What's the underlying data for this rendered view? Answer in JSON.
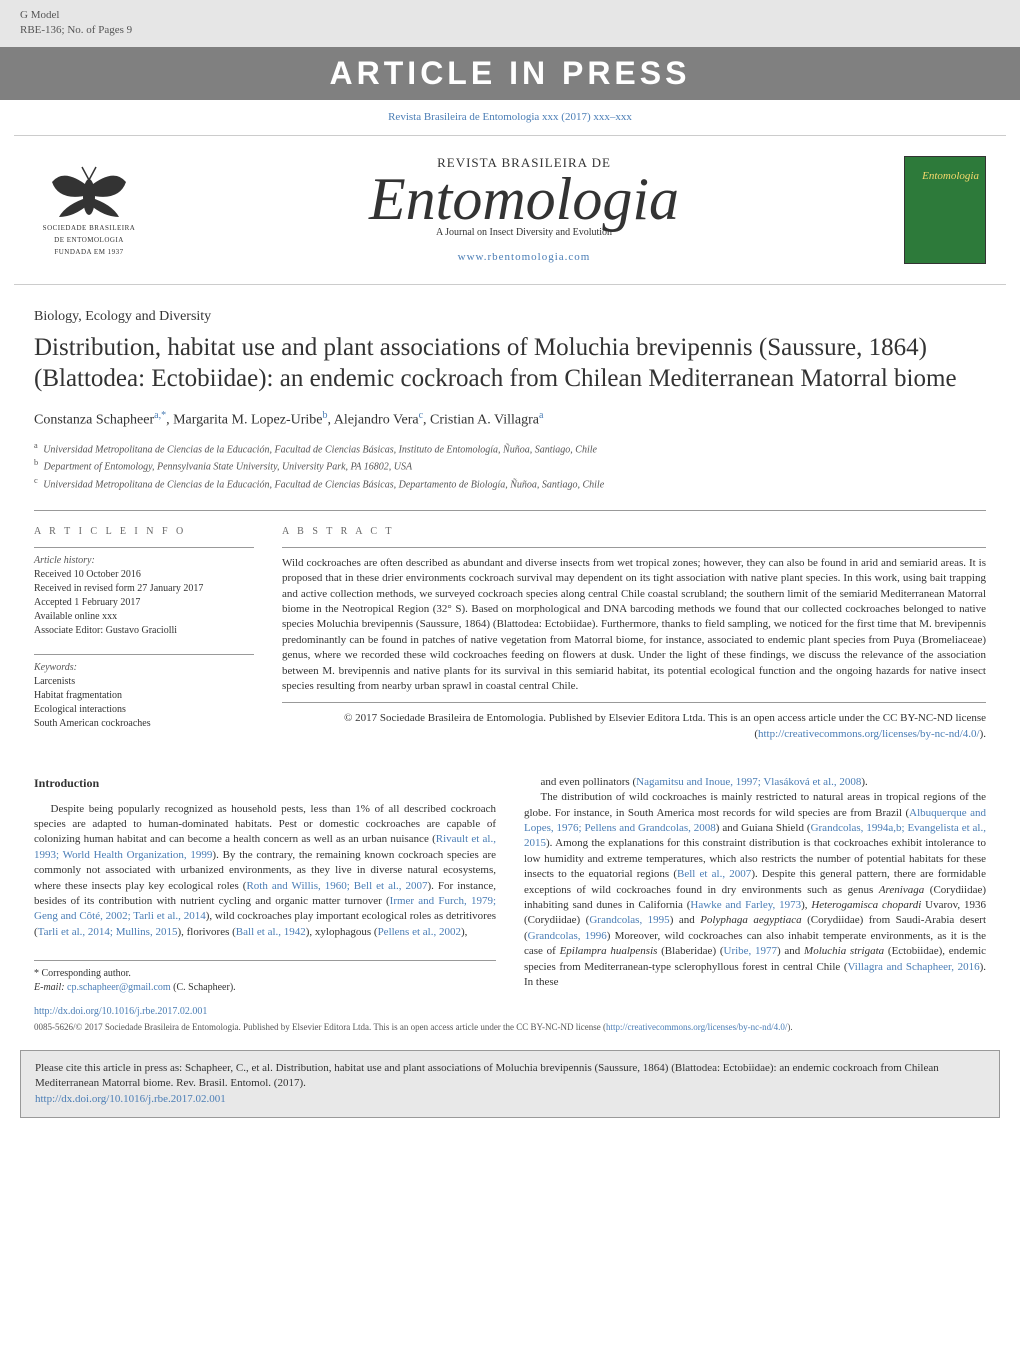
{
  "header": {
    "gmodel": "G Model",
    "ref": "RBE-136; No. of Pages 9",
    "banner": "ARTICLE IN PRESS",
    "citation": "Revista Brasileira de Entomologia xxx (2017) xxx–xxx"
  },
  "journal": {
    "logo_lines": [
      "SOCIEDADE BRASILEIRA",
      "DE ENTOMOLOGIA",
      "FUNDADA EM 1937"
    ],
    "supertitle": "REVISTA BRASILEIRA DE",
    "title": "Entomologia",
    "subtitle": "A Journal on Insect Diversity and Evolution",
    "url_label": "www.rbentomologia.com",
    "cover_word": "Entomologia"
  },
  "article": {
    "section": "Biology, Ecology and Diversity",
    "title": "Distribution, habitat use and plant associations of Moluchia brevipennis (Saussure, 1864) (Blattodea: Ectobiidae): an endemic cockroach from Chilean Mediterranean Matorral biome",
    "authors_html": "Constanza Schapheer<sup>a,*</sup>, Margarita M. Lopez-Uribe<sup>b</sup>, Alejandro Vera<sup>c</sup>, Cristian A. Villagra<sup>a</sup>",
    "affiliations": [
      {
        "sup": "a",
        "text": "Universidad Metropolitana de Ciencias de la Educación, Facultad de Ciencias Básicas, Instituto de Entomología, Ñuñoa, Santiago, Chile"
      },
      {
        "sup": "b",
        "text": "Department of Entomology, Pennsylvania State University, University Park, PA 16802, USA"
      },
      {
        "sup": "c",
        "text": "Universidad Metropolitana de Ciencias de la Educación, Facultad de Ciencias Básicas, Departamento de Biología, Ñuñoa, Santiago, Chile"
      }
    ]
  },
  "info": {
    "head": "A R T I C L E  I N F O",
    "history_label": "Article history:",
    "history": [
      "Received 10 October 2016",
      "Received in revised form 27 January 2017",
      "Accepted 1 February 2017",
      "Available online xxx",
      "Associate Editor: Gustavo Graciolli"
    ],
    "keywords_label": "Keywords:",
    "keywords": [
      "Larcenists",
      "Habitat fragmentation",
      "Ecological interactions",
      "South American cockroaches"
    ]
  },
  "abstract": {
    "head": "A B S T R A C T",
    "body": "Wild cockroaches are often described as abundant and diverse insects from wet tropical zones; however, they can also be found in arid and semiarid areas. It is proposed that in these drier environments cockroach survival may dependent on its tight association with native plant species. In this work, using bait trapping and active collection methods, we surveyed cockroach species along central Chile coastal scrubland; the southern limit of the semiarid Mediterranean Matorral biome in the Neotropical Region (32° S). Based on morphological and DNA barcoding methods we found that our collected cockroaches belonged to native species Moluchia brevipennis (Saussure, 1864) (Blattodea: Ectobiidae). Furthermore, thanks to field sampling, we noticed for the first time that M. brevipennis predominantly can be found in patches of native vegetation from Matorral biome, for instance, associated to endemic plant species from Puya (Bromeliaceae) genus, where we recorded these wild cockroaches feeding on flowers at dusk. Under the light of these findings, we discuss the relevance of the association between M. brevipennis and native plants for its survival in this semiarid habitat, its potential ecological function and the ongoing hazards for native insect species resulting from nearby urban sprawl in coastal central Chile.",
    "copyright": "© 2017 Sociedade Brasileira de Entomologia. Published by Elsevier Editora Ltda. This is an open access article under the CC BY-NC-ND license (",
    "license_url": "http://creativecommons.org/licenses/by-nc-nd/4.0/",
    "copyright_tail": ")."
  },
  "body": {
    "intro_head": "Introduction",
    "left_html": "Despite being popularly recognized as household pests, less than 1% of all described cockroach species are adapted to human-dominated habitats. Pest or domestic cockroaches are capable of colonizing human habitat and can become a health concern as well as an urban nuisance (<a>Rivault et al., 1993; World Health Organization, 1999</a>). By the contrary, the remaining known cockroach species are commonly not associated with urbanized environments, as they live in diverse natural ecosystems, where these insects play key ecological roles (<a>Roth and Willis, 1960; Bell et al., 2007</a>). For instance, besides of its contribution with nutrient cycling and organic matter turnover (<a>Irmer and Furch, 1979; Geng and Côté, 2002; Tarli et al., 2014</a>), wild cockroaches play important ecological roles as detritivores (<a>Tarli et al., 2014; Mullins, 2015</a>), florivores (<a>Ball et al., 1942</a>), xylophagous (<a>Pellens et al., 2002</a>),",
    "right_html": "and even pollinators (<a>Nagamitsu and Inoue, 1997; Vlasáková et al., 2008</a>).</p><p>The distribution of wild cockroaches is mainly restricted to natural areas in tropical regions of the globe. For instance, in South America most records for wild species are from Brazil (<a>Albuquerque and Lopes, 1976; Pellens and Grandcolas, 2008</a>) and Guiana Shield (<a>Grandcolas, 1994a,b; Evangelista et al., 2015</a>). Among the explanations for this constraint distribution is that cockroaches exhibit intolerance to low humidity and extreme temperatures, which also restricts the number of potential habitats for these insects to the equatorial regions (<a>Bell et al., 2007</a>). Despite this general pattern, there are formidable exceptions of wild cockroaches found in dry environments such as genus <i>Arenivaga</i> (Corydiidae) inhabiting sand dunes in California (<a>Hawke and Farley, 1973</a>), <i>Heterogamisca chopardi</i> Uvarov, 1936 (Corydiidae) (<a>Grandcolas, 1995</a>) and <i>Polyphaga aegyptiaca</i> (Corydiidae) from Saudi-Arabia desert (<a>Grandcolas, 1996</a>) Moreover, wild cockroaches can also inhabit temperate environments, as it is the case of <i>Epilampra hualpensis</i> (Blaberidae) (<a>Uribe, 1977</a>) and <i>Moluchia strigata</i> (Ectobiidae), endemic species from Mediterranean-type sclerophyllous forest in central Chile (<a>Villagra and Schapheer, 2016</a>). In these"
  },
  "footnote": {
    "corr": "* Corresponding author.",
    "email_label": "E-mail:",
    "email": "cp.schapheer@gmail.com",
    "email_tail": " (C. Schapheer)."
  },
  "footer": {
    "doi": "http://dx.doi.org/10.1016/j.rbe.2017.02.001",
    "issn_line": "0085-5626/© 2017 Sociedade Brasileira de Entomologia. Published by Elsevier Editora Ltda. This is an open access article under the CC BY-NC-ND license (",
    "license_url": "http://creativecommons.org/licenses/by-nc-nd/4.0/",
    "issn_tail": ")."
  },
  "citebox": {
    "text": "Please cite this article in press as: Schapheer, C., et al. Distribution, habitat use and plant associations of Moluchia brevipennis (Saussure, 1864) (Blattodea: Ectobiidae): an endemic cockroach from Chilean Mediterranean Matorral biome. Rev. Brasil. Entomol. (2017).",
    "doi": "http://dx.doi.org/10.1016/j.rbe.2017.02.001"
  },
  "colors": {
    "link": "#4a7db5",
    "grey_bg": "#e6e6e6",
    "banner_bg": "#808080",
    "cover_bg": "#2d7a3a",
    "cover_text": "#f5d96b",
    "citebox_bg": "#e8e8e8"
  }
}
